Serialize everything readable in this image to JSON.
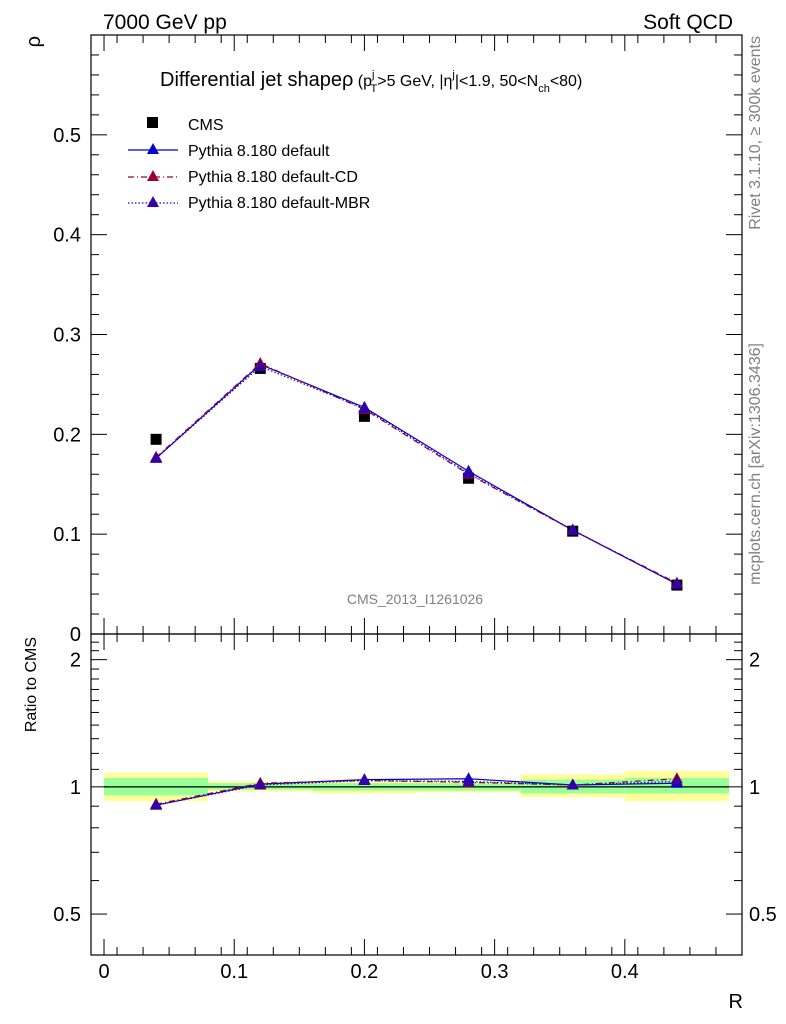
{
  "header": {
    "left": "7000 GeV pp",
    "right": "Soft QCD"
  },
  "side": {
    "rivet": "Rivet 3.1.10, ≥ 300k events",
    "mcplots": "mcplots.cern.ch [arXiv:1306.3436]"
  },
  "colors": {
    "cms": "#000000",
    "default": "#0000cc",
    "cd": "#990033",
    "mbr": "#3300aa",
    "band_inner": "#99ff99",
    "band_outer": "#ffff99"
  },
  "chart_data": [
    {
      "type": "line",
      "title": "Differential jet shape ρ (p_T^j > 5 GeV, |η^j| < 1.9, 50 < N_ch < 80)",
      "title_parts": {
        "main": "Differential jet shape",
        "rho": "ρ",
        "open": " (p",
        "pt_sup": "j",
        "pt_sub": "T",
        "mid1": ">5 GeV, |η",
        "eta_sup": "j",
        "mid2": "|<1.9, 50<N",
        "nch_sub": "ch",
        "end": "<80)"
      },
      "ylabel": "ρ",
      "xlim": [
        -0.01,
        0.49
      ],
      "ylim": [
        0,
        0.6
      ],
      "yticks": [
        0,
        0.1,
        0.2,
        0.3,
        0.4,
        0.5
      ],
      "ytick_labels": [
        "0",
        "0.1",
        "0.2",
        "0.3",
        "0.4",
        "0.5"
      ],
      "analysis_label": "CMS_2013_I1261026",
      "legend": "top-left",
      "x": [
        0.04,
        0.12,
        0.2,
        0.28,
        0.36,
        0.44
      ],
      "series": [
        {
          "name": "CMS",
          "values": [
            0.195,
            0.266,
            0.218,
            0.156,
            0.103,
            0.049
          ],
          "style": "square"
        },
        {
          "name": "Pythia 8.180 default",
          "values": [
            0.176,
            0.27,
            0.227,
            0.163,
            0.104,
            0.05
          ],
          "style": "solid"
        },
        {
          "name": "Pythia 8.180 default-CD",
          "values": [
            0.177,
            0.271,
            0.225,
            0.16,
            0.104,
            0.051
          ],
          "style": "dashdot"
        },
        {
          "name": "Pythia 8.180 default-MBR",
          "values": [
            0.176,
            0.268,
            0.226,
            0.161,
            0.104,
            0.05
          ],
          "style": "dotted"
        }
      ]
    },
    {
      "type": "line",
      "ylabel": "Ratio to CMS",
      "xlabel": "R",
      "xlim": [
        -0.01,
        0.49
      ],
      "ylim": [
        0.4,
        2.3
      ],
      "log_y": true,
      "yticks": [
        0.5,
        1,
        2
      ],
      "ytick_labels": [
        "0.5",
        "1",
        "2"
      ],
      "xticks": [
        0,
        0.1,
        0.2,
        0.3,
        0.4
      ],
      "xtick_labels": [
        "0",
        "0.1",
        "0.2",
        "0.3",
        "0.4"
      ],
      "x": [
        0.04,
        0.12,
        0.2,
        0.28,
        0.36,
        0.44
      ],
      "bins": [
        [
          0.0,
          0.08
        ],
        [
          0.08,
          0.16
        ],
        [
          0.16,
          0.24
        ],
        [
          0.24,
          0.32
        ],
        [
          0.32,
          0.4
        ],
        [
          0.4,
          0.48
        ]
      ],
      "band_inner": [
        [
          0.955,
          1.05
        ],
        [
          0.985,
          1.02
        ],
        [
          0.98,
          1.02
        ],
        [
          0.98,
          1.02
        ],
        [
          0.965,
          1.04
        ],
        [
          0.965,
          1.05
        ]
      ],
      "band_outer": [
        [
          0.925,
          1.08
        ],
        [
          0.975,
          1.03
        ],
        [
          0.965,
          1.03
        ],
        [
          0.97,
          1.03
        ],
        [
          0.945,
          1.07
        ],
        [
          0.925,
          1.09
        ]
      ],
      "series": [
        {
          "name": "Pythia 8.180 default",
          "values": [
            0.905,
            1.015,
            1.04,
            1.045,
            1.01,
            1.02
          ],
          "style": "solid"
        },
        {
          "name": "Pythia 8.180 default-CD",
          "values": [
            0.91,
            1.02,
            1.035,
            1.025,
            1.01,
            1.045
          ],
          "style": "dashdot"
        },
        {
          "name": "Pythia 8.180 default-MBR",
          "values": [
            0.905,
            1.01,
            1.035,
            1.03,
            1.01,
            1.03
          ],
          "style": "dotted"
        }
      ]
    }
  ]
}
